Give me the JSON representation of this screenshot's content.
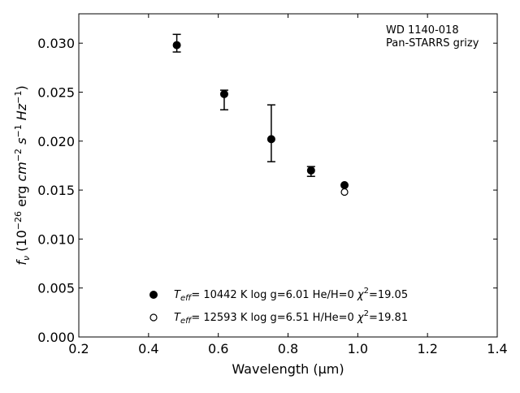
{
  "chart_data": {
    "type": "scatter",
    "xlabel": "Wavelength (μm)",
    "ylabel": "f_ν (10^-26 erg cm^-2 s^-1 Hz^-1)",
    "xlim": [
      0.2,
      1.4
    ],
    "ylim": [
      0.0,
      0.033
    ],
    "xticks": [
      "0.2",
      "0.4",
      "0.6",
      "0.8",
      "1.0",
      "1.2",
      "1.4"
    ],
    "xtick_values": [
      0.2,
      0.4,
      0.6,
      0.8,
      1.0,
      1.2,
      1.4
    ],
    "yticks": [
      "0.000",
      "0.005",
      "0.010",
      "0.015",
      "0.020",
      "0.025",
      "0.030"
    ],
    "ytick_values": [
      0.0,
      0.005,
      0.01,
      0.015,
      0.02,
      0.025,
      0.03
    ],
    "grid": false,
    "annotation": [
      "WD 1140-018",
      "Pan-STARRS grizy"
    ],
    "annotation_placement": "top-right",
    "legend_placement": "bottom-center",
    "observed": {
      "marker": "filled-circle-with-errorbars",
      "points": [
        {
          "x": 0.481,
          "y": 0.0298,
          "err_low": 0.0007,
          "err_high": 0.0011
        },
        {
          "x": 0.617,
          "y": 0.0248,
          "err_low": 0.0016,
          "err_high": 0.0004
        },
        {
          "x": 0.752,
          "y": 0.0202,
          "err_low": 0.0023,
          "err_high": 0.0035
        },
        {
          "x": 0.866,
          "y": 0.017,
          "err_low": 0.0006,
          "err_high": 0.0004
        },
        {
          "x": 0.962,
          "y": 0.0155,
          "err_low": 0.0,
          "err_high": 0.0
        }
      ]
    },
    "model_open": {
      "marker": "open-circle",
      "points": [
        {
          "x": 0.962,
          "y": 0.0148
        }
      ]
    },
    "legend": [
      {
        "marker": "filled-circle",
        "teff_label": "T",
        "teff_sub": "eff",
        "teff_value": "= 10442 K",
        "logg": "log g=6.01",
        "comp": "He/H=0",
        "chi_label": "χ",
        "chi_sup": "2",
        "chi_value": "=19.05"
      },
      {
        "marker": "open-circle",
        "teff_label": "T",
        "teff_sub": "eff",
        "teff_value": "= 12593 K",
        "logg": "log g=6.51",
        "comp": "H/He=0",
        "chi_label": "χ",
        "chi_sup": "2",
        "chi_value": "=19.81"
      }
    ]
  }
}
